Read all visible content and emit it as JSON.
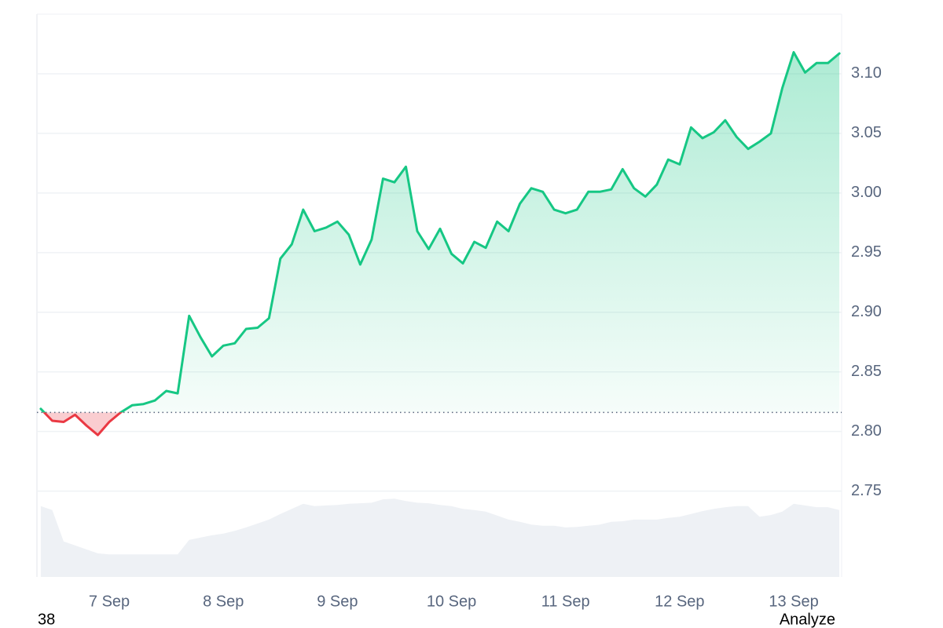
{
  "chart_data": {
    "type": "line",
    "x": [
      6.4,
      6.5,
      6.6,
      6.7,
      6.8,
      6.9,
      7.0,
      7.1,
      7.2,
      7.3,
      7.4,
      7.5,
      7.6,
      7.7,
      7.8,
      7.9,
      8.0,
      8.1,
      8.2,
      8.3,
      8.4,
      8.5,
      8.6,
      8.7,
      8.8,
      8.9,
      9.0,
      9.1,
      9.2,
      9.3,
      9.4,
      9.5,
      9.6,
      9.7,
      9.8,
      9.9,
      10.0,
      10.1,
      10.2,
      10.3,
      10.4,
      10.5,
      10.6,
      10.7,
      10.8,
      10.9,
      11.0,
      11.1,
      11.2,
      11.3,
      11.4,
      11.5,
      11.6,
      11.7,
      11.8,
      11.9,
      12.0,
      12.1,
      12.2,
      12.3,
      12.4,
      12.5,
      12.6,
      12.7,
      12.8,
      12.9,
      13.0,
      13.1,
      13.2,
      13.3,
      13.4
    ],
    "series": [
      {
        "color": "#16c784",
        "negative_color": "#ea3943",
        "values": [
          2.819,
          2.809,
          2.808,
          2.814,
          2.805,
          2.797,
          2.808,
          2.816,
          2.822,
          2.823,
          2.826,
          2.834,
          2.832,
          2.897,
          2.879,
          2.863,
          2.872,
          2.874,
          2.886,
          2.887,
          2.895,
          2.945,
          2.957,
          2.986,
          2.968,
          2.971,
          2.976,
          2.965,
          2.94,
          2.961,
          3.012,
          3.009,
          3.022,
          2.968,
          2.953,
          2.97,
          2.949,
          2.941,
          2.959,
          2.954,
          2.976,
          2.968,
          2.991,
          3.004,
          3.001,
          2.986,
          2.983,
          2.986,
          3.001,
          3.001,
          3.003,
          3.02,
          3.004,
          2.997,
          3.007,
          3.028,
          3.024,
          3.055,
          3.046,
          3.051,
          3.061,
          3.047,
          3.037,
          3.043,
          3.05,
          3.088,
          3.118,
          3.101,
          3.109,
          3.109,
          3.117
        ]
      },
      {
        "color": "#eef1f5",
        "axis": "y2",
        "values": [
          12.6,
          11.9,
          6.3,
          5.6,
          4.9,
          4.2,
          4.0,
          4.0,
          4.0,
          4.0,
          4.0,
          4.0,
          4.0,
          6.6,
          7.0,
          7.4,
          7.7,
          8.2,
          8.8,
          9.5,
          10.2,
          11.2,
          12.1,
          13.0,
          12.6,
          12.7,
          12.8,
          13.0,
          13.1,
          13.2,
          13.8,
          13.9,
          13.5,
          13.2,
          13.1,
          12.8,
          12.6,
          12.1,
          11.9,
          11.6,
          10.9,
          10.2,
          9.8,
          9.3,
          9.1,
          9.1,
          8.8,
          8.9,
          9.1,
          9.3,
          9.8,
          9.9,
          10.2,
          10.2,
          10.2,
          10.5,
          10.7,
          11.2,
          11.7,
          12.1,
          12.4,
          12.6,
          12.6,
          10.7,
          11.0,
          11.6,
          13.0,
          12.7,
          12.4,
          12.4,
          11.9
        ]
      }
    ],
    "baseline": 2.816,
    "xlim": [
      6.366,
      13.42
    ],
    "xticks": [
      {
        "value": 7,
        "label": "7 Sep"
      },
      {
        "value": 8,
        "label": "8 Sep"
      },
      {
        "value": 9,
        "label": "9 Sep"
      },
      {
        "value": 10,
        "label": "10 Sep"
      },
      {
        "value": 11,
        "label": "11 Sep"
      },
      {
        "value": 12,
        "label": "12 Sep"
      },
      {
        "value": 13,
        "label": "13 Sep"
      }
    ],
    "ylim": [
      2.678,
      3.15
    ],
    "yticks": [
      2.75,
      {
        "value": 2.8,
        "label": "2.80"
      },
      2.85,
      {
        "value": 2.9,
        "label": "2.90"
      },
      2.95,
      {
        "value": 3.0,
        "label": "3.00"
      },
      3.05,
      {
        "value": 3.1,
        "label": "3.10"
      }
    ],
    "y2lim": [
      0,
      100
    ],
    "grid": true,
    "footer_left": "38",
    "footer_right": "Analyze"
  }
}
